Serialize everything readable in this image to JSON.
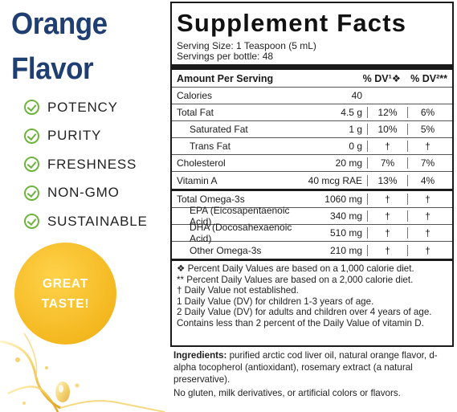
{
  "flavor": {
    "line1": "Orange",
    "line2": "Flavor",
    "color": "#1f3f73"
  },
  "claims": [
    "POTENCY",
    "PURITY",
    "FRESHNESS",
    "NON-GMO",
    "SUSTAINABLE"
  ],
  "badge": {
    "line1": "GREAT",
    "line2": "TASTE!",
    "color": "#f4b820"
  },
  "facts": {
    "title": "Supplement Facts",
    "serving_size": "Serving Size: 1 Teaspoon (5 mL)",
    "servings_per": "Servings per bottle: 48",
    "header": {
      "amount": "Amount Per Serving",
      "dv1": "% DV¹❖",
      "dv2": "% DV²**"
    },
    "rows": [
      {
        "name": "Calories",
        "amount": "40",
        "dv1": "",
        "dv2": "",
        "sub": false
      },
      {
        "name": "Total Fat",
        "amount": "4.5 g",
        "dv1": "12%",
        "dv2": "6%",
        "sub": false
      },
      {
        "name": "Saturated Fat",
        "amount": "1 g",
        "dv1": "10%",
        "dv2": "5%",
        "sub": true
      },
      {
        "name": "Trans Fat",
        "amount": "0 g",
        "dv1": "†",
        "dv2": "†",
        "sub": true
      },
      {
        "name": "Cholesterol",
        "amount": "20 mg",
        "dv1": "7%",
        "dv2": "7%",
        "sub": false
      },
      {
        "name": "Vitamin A",
        "amount": "40 mcg RAE",
        "dv1": "13%",
        "dv2": "4%",
        "sub": false
      }
    ],
    "omega_rows": [
      {
        "name": "Total Omega-3s",
        "amount": "1060 mg",
        "dv1": "†",
        "dv2": "†",
        "sub": false
      },
      {
        "name": "EPA (Eicosapentaenoic Acid)",
        "amount": "340 mg",
        "dv1": "†",
        "dv2": "†",
        "sub": true
      },
      {
        "name": "DHA (Docosahexaenoic Acid)",
        "amount": "510 mg",
        "dv1": "†",
        "dv2": "†",
        "sub": true
      },
      {
        "name": "Other Omega-3s",
        "amount": "210 mg",
        "dv1": "†",
        "dv2": "†",
        "sub": true
      }
    ],
    "notes": [
      "❖ Percent Daily Values are based on a 1,000 calorie diet.",
      "** Percent Daily Values are based on a 2,000 calorie diet.",
      "†  Daily Value not established.",
      "1  Daily Value (DV) for children 1-3 years of age.",
      "2  Daily Value (DV) for adults and children over 4 years of age.",
      "Contains less than 2 percent of the Daily Value of vitamin D."
    ]
  },
  "ingredients": {
    "label": "Ingredients:",
    "text": " purified arctic cod liver oil, natural orange flavor, d-alpha tocopherol (antioxidant), rosemary extract (a natural preservative).",
    "free_from": "No gluten, milk derivatives, or artificial colors or flavors."
  }
}
